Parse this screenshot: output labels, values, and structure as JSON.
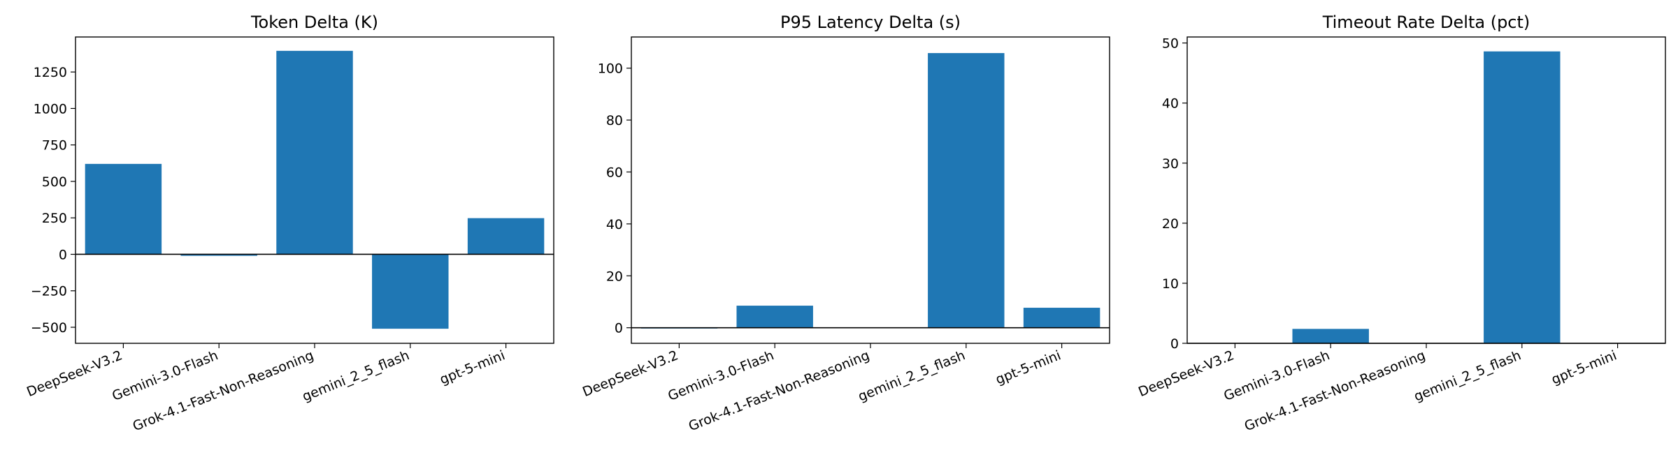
{
  "chart_data": [
    {
      "type": "bar",
      "title": "Token Delta (K)",
      "xlabel": "",
      "ylabel": "",
      "categories": [
        "DeepSeek-V3.2",
        "Gemini-3.0-Flash",
        "Grok-4.1-Fast-Non-Reasoning",
        "gemini_2_5_flash",
        "gpt-5-mini"
      ],
      "values": [
        620,
        -10,
        1395,
        -510,
        248
      ],
      "ylim": [
        -610,
        1490
      ],
      "yticks": [
        -500,
        -250,
        0,
        250,
        500,
        750,
        1000,
        1250
      ],
      "ytick_labels": [
        "−500",
        "−250",
        "0",
        "250",
        "500",
        "750",
        "1000",
        "1250"
      ],
      "zero_line": true,
      "grid": false,
      "bar_color": "#1f77b4"
    },
    {
      "type": "bar",
      "title": "P95 Latency Delta (s)",
      "xlabel": "",
      "ylabel": "",
      "categories": [
        "DeepSeek-V3.2",
        "Gemini-3.0-Flash",
        "Grok-4.1-Fast-Non-Reasoning",
        "gemini_2_5_flash",
        "gpt-5-mini"
      ],
      "values": [
        -0.3,
        8.5,
        0,
        105.8,
        7.7
      ],
      "ylim": [
        -6,
        112
      ],
      "yticks": [
        0,
        20,
        40,
        60,
        80,
        100
      ],
      "ytick_labels": [
        "0",
        "20",
        "40",
        "60",
        "80",
        "100"
      ],
      "zero_line": true,
      "grid": false,
      "bar_color": "#1f77b4"
    },
    {
      "type": "bar",
      "title": "Timeout Rate Delta (pct)",
      "xlabel": "",
      "ylabel": "",
      "categories": [
        "DeepSeek-V3.2",
        "Gemini-3.0-Flash",
        "Grok-4.1-Fast-Non-Reasoning",
        "gemini_2_5_flash",
        "gpt-5-mini"
      ],
      "values": [
        0,
        2.4,
        0,
        48.6,
        0
      ],
      "ylim": [
        0,
        51
      ],
      "yticks": [
        0,
        10,
        20,
        30,
        40,
        50
      ],
      "ytick_labels": [
        "0",
        "10",
        "20",
        "30",
        "40",
        "50"
      ],
      "zero_line": true,
      "grid": false,
      "bar_color": "#1f77b4"
    }
  ]
}
